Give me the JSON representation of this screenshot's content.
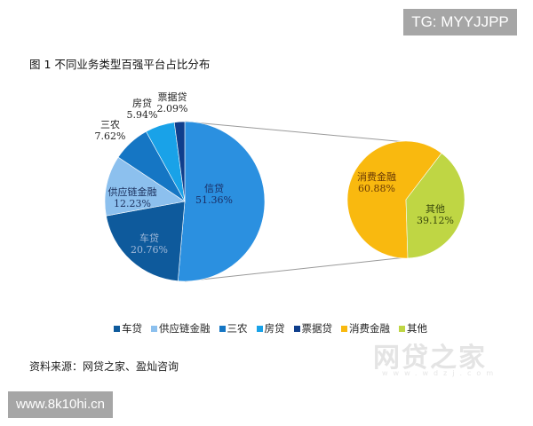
{
  "watermarks": {
    "top_right": "TG: MYYJJPP",
    "bottom_left": "www.8k10hi.cn",
    "logo": "网贷之家",
    "logo_sub": "www.wdzj.com"
  },
  "chart_data": [
    {
      "type": "pie",
      "title": "图 1 不同业务类型百强平台占比分布",
      "categories": [
        "信贷",
        "车贷",
        "供应链金融",
        "三农",
        "房贷",
        "票据贷"
      ],
      "values": [
        51.36,
        20.76,
        12.23,
        7.62,
        5.94,
        2.09
      ],
      "labels": [
        "51.36%",
        "20.76%",
        "12.23%",
        "7.62%",
        "5.94%",
        "2.09%"
      ],
      "colors": [
        "#2b90e0",
        "#0e5a9c",
        "#8cc0ee",
        "#1576c4",
        "#19a2e8",
        "#0f3e8c"
      ],
      "unit": "%"
    },
    {
      "type": "pie",
      "title": "信贷 breakdown",
      "categories": [
        "消费金融",
        "其他"
      ],
      "values": [
        60.88,
        39.12
      ],
      "labels": [
        "60.88%",
        "39.12%"
      ],
      "colors": [
        "#f9b90f",
        "#bfd644"
      ],
      "unit": "%"
    }
  ],
  "chart": {
    "title": "图 1 不同业务类型百强平台占比分布",
    "left_pie": {
      "slices": [
        {
          "name": "信贷",
          "pct": "51.36%"
        },
        {
          "name": "车贷",
          "pct": "20.76%"
        },
        {
          "name": "供应链金融",
          "pct": "12.23%"
        },
        {
          "name": "三农",
          "pct": "7.62%"
        },
        {
          "name": "房贷",
          "pct": "5.94%"
        },
        {
          "name": "票据贷",
          "pct": "2.09%"
        }
      ]
    },
    "right_pie": {
      "slices": [
        {
          "name": "消费金融",
          "pct": "60.88%"
        },
        {
          "name": "其他",
          "pct": "39.12%"
        }
      ]
    },
    "legend": [
      {
        "label": "车贷",
        "color": "#0e5a9c"
      },
      {
        "label": "供应链金融",
        "color": "#8cc0ee"
      },
      {
        "label": "三农",
        "color": "#1576c4"
      },
      {
        "label": "房贷",
        "color": "#19a2e8"
      },
      {
        "label": "票据贷",
        "color": "#0f3e8c"
      },
      {
        "label": "消费金融",
        "color": "#f9b90f"
      },
      {
        "label": "其他",
        "color": "#bfd644"
      }
    ],
    "source": "资料来源：网贷之家、盈灿咨询"
  }
}
